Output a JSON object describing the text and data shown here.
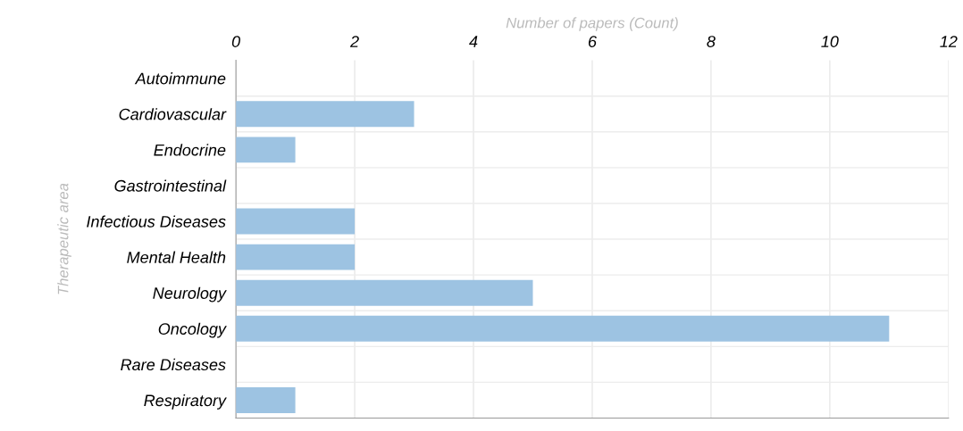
{
  "chart_data": {
    "type": "bar",
    "orientation": "horizontal",
    "xlabel": "Number of papers (Count)",
    "ylabel": "Therapeutic area",
    "categories": [
      "Autoimmune",
      "Cardiovascular",
      "Endocrine",
      "Gastrointestinal",
      "Infectious Diseases",
      "Mental Health",
      "Neurology",
      "Oncology",
      "Rare Diseases",
      "Respiratory"
    ],
    "values": [
      0,
      3,
      1,
      0,
      2,
      2,
      5,
      11,
      0,
      1
    ],
    "color": "#9dc3e2",
    "xlim": [
      0,
      12
    ],
    "xticks": [
      0,
      2,
      4,
      6,
      8,
      10,
      12
    ],
    "grid": true
  }
}
